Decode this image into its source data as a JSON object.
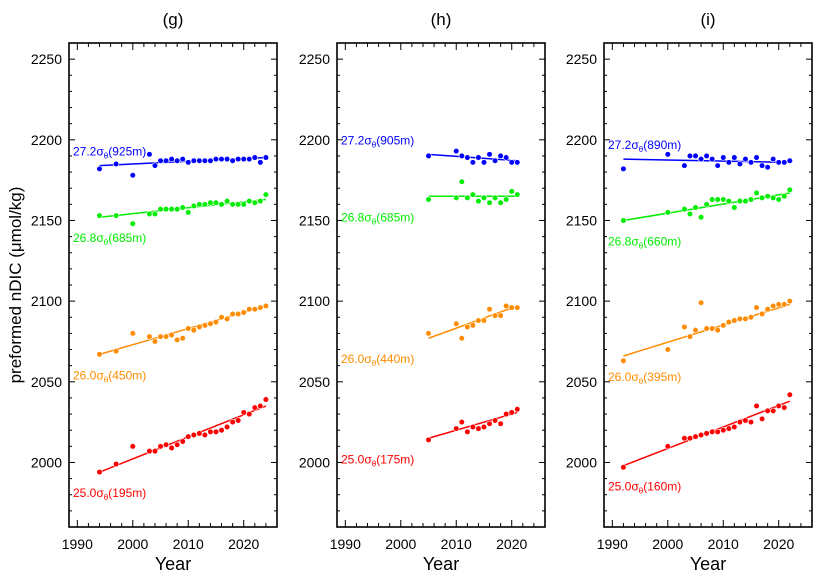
{
  "figure": {
    "ylabel_pre": "preformed nDIC (",
    "ylabel_mu": "μ",
    "ylabel_post": "mol/kg)",
    "colors": {
      "25.0": "#ff0000",
      "26.0": "#ff8c00",
      "26.8": "#00ee00",
      "27.2": "#0000ff"
    }
  },
  "chart_data": [
    {
      "type": "scatter",
      "title": "(g)",
      "xlabel": "Year",
      "xlim": [
        1988.5,
        2026
      ],
      "ylim": [
        1960,
        2260
      ],
      "xticks": [
        1990,
        2000,
        2010,
        2020
      ],
      "yticks": [
        2000,
        2050,
        2100,
        2150,
        2200,
        2250
      ],
      "show_y_ticklabels": true,
      "series": [
        {
          "name": "27.2",
          "label": "27.2σθ(925m)",
          "label_main": "27.2σ",
          "label_sub": "θ",
          "label_depth": "(925m)",
          "label_pos": "above",
          "color": "#0000ff",
          "x": [
            1994,
            1997,
            2000,
            2003,
            2004,
            2005,
            2006,
            2007,
            2008,
            2009,
            2010,
            2011,
            2012,
            2013,
            2014,
            2015,
            2016,
            2017,
            2018,
            2019,
            2020,
            2021,
            2022,
            2023,
            2024
          ],
          "y": [
            2182,
            2185,
            2178,
            2191,
            2184,
            2187,
            2187,
            2188,
            2187,
            2188,
            2186,
            2187,
            2187,
            2187,
            2187,
            2188,
            2188,
            2188,
            2187,
            2188,
            2188,
            2188,
            2189,
            2186,
            2189
          ],
          "fit": [
            [
              1994,
              2184
            ],
            [
              2024,
              2189
            ]
          ]
        },
        {
          "name": "26.8",
          "label": "26.8σθ(685m)",
          "label_main": "26.8σ",
          "label_sub": "θ",
          "label_depth": "(685m)",
          "label_pos": "below",
          "color": "#00ee00",
          "x": [
            1994,
            1997,
            2000,
            2003,
            2004,
            2005,
            2006,
            2007,
            2008,
            2009,
            2010,
            2011,
            2012,
            2013,
            2014,
            2015,
            2016,
            2017,
            2018,
            2019,
            2020,
            2021,
            2022,
            2023,
            2024
          ],
          "y": [
            2153,
            2153,
            2148,
            2154,
            2154,
            2157,
            2157,
            2157,
            2157,
            2158,
            2155,
            2159,
            2160,
            2160,
            2161,
            2161,
            2160,
            2162,
            2160,
            2160,
            2160,
            2162,
            2161,
            2162,
            2166
          ],
          "fit": [
            [
              1994,
              2152
            ],
            [
              2024,
              2163
            ]
          ]
        },
        {
          "name": "26.0",
          "label": "26.0σθ(450m)",
          "label_main": "26.0σ",
          "label_sub": "θ",
          "label_depth": "(450m)",
          "label_pos": "below",
          "color": "#ff8c00",
          "x": [
            1994,
            1997,
            2000,
            2003,
            2004,
            2005,
            2006,
            2007,
            2008,
            2009,
            2010,
            2011,
            2012,
            2013,
            2014,
            2015,
            2016,
            2017,
            2018,
            2019,
            2020,
            2021,
            2022,
            2023,
            2024
          ],
          "y": [
            2067,
            2069,
            2080,
            2078,
            2075,
            2078,
            2078,
            2079,
            2076,
            2077,
            2083,
            2082,
            2084,
            2085,
            2086,
            2087,
            2090,
            2089,
            2092,
            2092,
            2093,
            2095,
            2095,
            2096,
            2097
          ],
          "fit": [
            [
              1994,
              2067
            ],
            [
              2024,
              2097
            ]
          ]
        },
        {
          "name": "25.0",
          "label": "25.0σθ(195m)",
          "label_main": "25.0σ",
          "label_sub": "θ",
          "label_depth": "(195m)",
          "label_pos": "below",
          "color": "#ff0000",
          "x": [
            1994,
            1997,
            2000,
            2003,
            2004,
            2005,
            2006,
            2007,
            2008,
            2009,
            2010,
            2011,
            2012,
            2013,
            2014,
            2015,
            2016,
            2017,
            2018,
            2019,
            2020,
            2021,
            2022,
            2023,
            2024
          ],
          "y": [
            1994,
            1999,
            2010,
            2007,
            2007,
            2010,
            2011,
            2009,
            2011,
            2013,
            2016,
            2017,
            2018,
            2017,
            2019,
            2019,
            2020,
            2022,
            2025,
            2026,
            2031,
            2030,
            2034,
            2035,
            2039
          ],
          "fit": [
            [
              1994,
              1994
            ],
            [
              2024,
              2035
            ]
          ]
        }
      ]
    },
    {
      "type": "scatter",
      "title": "(h)",
      "xlabel": "Year",
      "xlim": [
        1988.5,
        2026
      ],
      "ylim": [
        1960,
        2260
      ],
      "xticks": [
        1990,
        2000,
        2010,
        2020
      ],
      "yticks": [
        2000,
        2050,
        2100,
        2150,
        2200,
        2250
      ],
      "show_y_ticklabels": true,
      "series": [
        {
          "name": "27.2",
          "label": "27.2σθ(905m)",
          "label_main": "27.2σ",
          "label_sub": "θ",
          "label_depth": "(905m)",
          "label_pos": "above",
          "color": "#0000ff",
          "x": [
            2005,
            2010,
            2011,
            2012,
            2013,
            2014,
            2015,
            2016,
            2017,
            2018,
            2019,
            2020,
            2021
          ],
          "y": [
            2190,
            2193,
            2190,
            2189,
            2186,
            2189,
            2186,
            2191,
            2187,
            2190,
            2189,
            2186,
            2186
          ],
          "fit": [
            [
              2005,
              2191
            ],
            [
              2021,
              2187
            ]
          ]
        },
        {
          "name": "26.8",
          "label": "26.8σθ(685m)",
          "label_main": "26.8σ",
          "label_sub": "θ",
          "label_depth": "(685m)",
          "label_pos": "below",
          "color": "#00ee00",
          "x": [
            2005,
            2010,
            2011,
            2012,
            2013,
            2014,
            2015,
            2016,
            2017,
            2018,
            2019,
            2020,
            2021
          ],
          "y": [
            2163,
            2164,
            2174,
            2164,
            2166,
            2162,
            2164,
            2161,
            2164,
            2161,
            2163,
            2168,
            2166
          ],
          "fit": [
            [
              2005,
              2165
            ],
            [
              2021,
              2165
            ]
          ]
        },
        {
          "name": "26.0",
          "label": "26.0σθ(440m)",
          "label_main": "26.0σ",
          "label_sub": "θ",
          "label_depth": "(440m)",
          "label_pos": "below",
          "color": "#ff8c00",
          "x": [
            2005,
            2010,
            2011,
            2012,
            2013,
            2014,
            2015,
            2016,
            2017,
            2018,
            2019,
            2020,
            2021
          ],
          "y": [
            2080,
            2086,
            2077,
            2084,
            2085,
            2088,
            2088,
            2095,
            2091,
            2091,
            2097,
            2096,
            2096
          ],
          "fit": [
            [
              2005,
              2077
            ],
            [
              2021,
              2097
            ]
          ]
        },
        {
          "name": "25.0",
          "label": "25.0σθ(175m)",
          "label_main": "25.0σ",
          "label_sub": "θ",
          "label_depth": "(175m)",
          "label_pos": "below",
          "color": "#ff0000",
          "x": [
            2005,
            2010,
            2011,
            2012,
            2013,
            2014,
            2015,
            2016,
            2017,
            2018,
            2019,
            2020,
            2021
          ],
          "y": [
            2014,
            2021,
            2025,
            2019,
            2022,
            2021,
            2022,
            2024,
            2026,
            2024,
            2030,
            2031,
            2033
          ],
          "fit": [
            [
              2005,
              2015
            ],
            [
              2021,
              2031
            ]
          ]
        }
      ]
    },
    {
      "type": "scatter",
      "title": "(i)",
      "xlabel": "Year",
      "xlim": [
        1988.5,
        2026
      ],
      "ylim": [
        1960,
        2260
      ],
      "xticks": [
        1990,
        2000,
        2010,
        2020
      ],
      "yticks": [
        2000,
        2050,
        2100,
        2150,
        2200,
        2250
      ],
      "show_y_ticklabels": true,
      "series": [
        {
          "name": "27.2",
          "label": "27.2σθ(890m)",
          "label_main": "27.2σ",
          "label_sub": "θ",
          "label_depth": "(890m)",
          "label_pos": "above",
          "color": "#0000ff",
          "x": [
            1992,
            2000,
            2003,
            2004,
            2005,
            2006,
            2007,
            2008,
            2009,
            2010,
            2011,
            2012,
            2013,
            2014,
            2015,
            2016,
            2017,
            2018,
            2019,
            2020,
            2021,
            2022
          ],
          "y": [
            2182,
            2191,
            2184,
            2190,
            2190,
            2188,
            2190,
            2188,
            2184,
            2189,
            2186,
            2189,
            2185,
            2188,
            2186,
            2189,
            2184,
            2183,
            2188,
            2186,
            2186,
            2187
          ],
          "fit": [
            [
              1992,
              2188
            ],
            [
              2022,
              2186
            ]
          ]
        },
        {
          "name": "26.8",
          "label": "26.8σθ(660m)",
          "label_main": "26.8σ",
          "label_sub": "θ",
          "label_depth": "(660m)",
          "label_pos": "below",
          "color": "#00ee00",
          "x": [
            1992,
            2000,
            2003,
            2004,
            2005,
            2006,
            2007,
            2008,
            2009,
            2010,
            2011,
            2012,
            2013,
            2014,
            2015,
            2016,
            2017,
            2018,
            2019,
            2020,
            2021,
            2022
          ],
          "y": [
            2150,
            2155,
            2157,
            2154,
            2158,
            2152,
            2160,
            2163,
            2163,
            2163,
            2162,
            2158,
            2162,
            2162,
            2163,
            2167,
            2164,
            2165,
            2164,
            2163,
            2165,
            2169
          ],
          "fit": [
            [
              1992,
              2150
            ],
            [
              2022,
              2167
            ]
          ]
        },
        {
          "name": "26.0",
          "label": "26.0σθ(395m)",
          "label_main": "26.0σ",
          "label_sub": "θ",
          "label_depth": "(395m)",
          "label_pos": "below",
          "color": "#ff8c00",
          "x": [
            1992,
            2000,
            2003,
            2004,
            2005,
            2006,
            2007,
            2008,
            2009,
            2010,
            2011,
            2012,
            2013,
            2014,
            2015,
            2016,
            2017,
            2018,
            2019,
            2020,
            2021,
            2022
          ],
          "y": [
            2063,
            2070,
            2084,
            2078,
            2082,
            2099,
            2083,
            2083,
            2082,
            2085,
            2087,
            2088,
            2089,
            2089,
            2090,
            2096,
            2092,
            2095,
            2097,
            2098,
            2098,
            2100
          ],
          "fit": [
            [
              1992,
              2066
            ],
            [
              2022,
              2098
            ]
          ]
        },
        {
          "name": "25.0",
          "label": "25.0σθ(160m)",
          "label_main": "25.0σ",
          "label_sub": "θ",
          "label_depth": "(160m)",
          "label_pos": "below",
          "color": "#ff0000",
          "x": [
            1992,
            2000,
            2003,
            2004,
            2005,
            2006,
            2007,
            2008,
            2009,
            2010,
            2011,
            2012,
            2013,
            2014,
            2015,
            2016,
            2017,
            2018,
            2019,
            2020,
            2021,
            2022
          ],
          "y": [
            1997,
            2010,
            2015,
            2015,
            2016,
            2017,
            2018,
            2019,
            2019,
            2020,
            2021,
            2022,
            2025,
            2026,
            2025,
            2035,
            2027,
            2032,
            2032,
            2035,
            2034,
            2042
          ],
          "fit": [
            [
              1992,
              1998
            ],
            [
              2022,
              2038
            ]
          ]
        }
      ]
    }
  ]
}
